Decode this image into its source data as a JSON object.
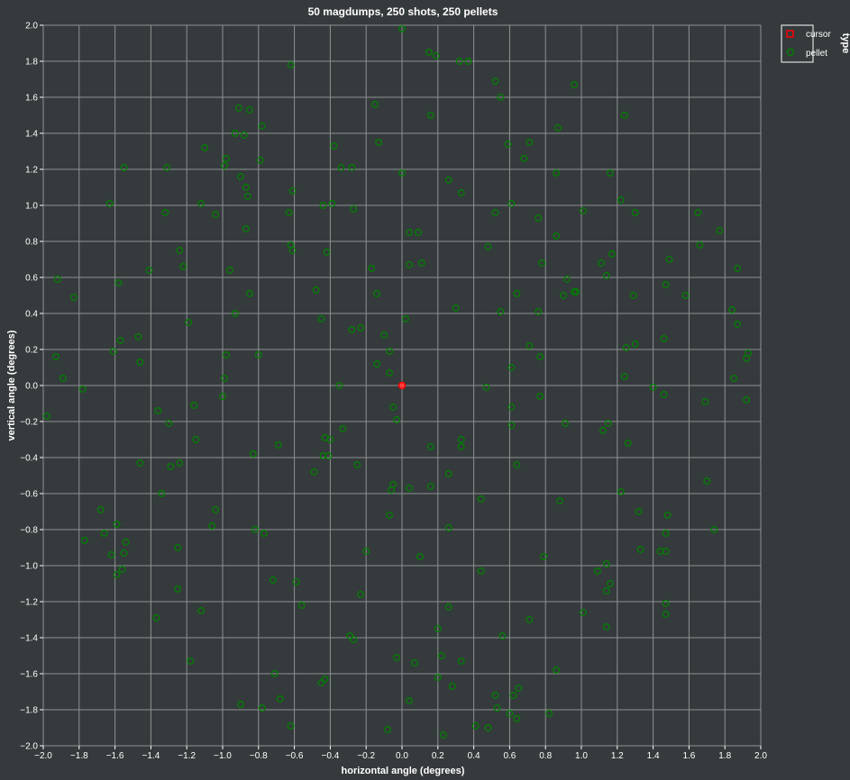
{
  "chart_data": {
    "type": "scatter",
    "title": "50 magdumps, 250 shots, 250 pellets",
    "xlabel": "horizontal angle (degrees)",
    "ylabel": "vertical angle (degrees)",
    "xlim": [
      -2.0,
      2.0
    ],
    "ylim": [
      -2.0,
      2.0
    ],
    "xticks": [
      "−2.0",
      "−1.8",
      "−1.6",
      "−1.4",
      "−1.2",
      "−1.0",
      "−0.8",
      "−0.6",
      "−0.4",
      "−0.2",
      "0.0",
      "0.2",
      "0.4",
      "0.6",
      "0.8",
      "1.0",
      "1.2",
      "1.4",
      "1.6",
      "1.8",
      "2.0"
    ],
    "yticks": [
      "−2.0",
      "−1.8",
      "−1.6",
      "−1.4",
      "−1.2",
      "−1.0",
      "−0.8",
      "−0.6",
      "−0.4",
      "−0.2",
      "0.0",
      "0.2",
      "0.4",
      "0.6",
      "0.8",
      "1.0",
      "1.2",
      "1.4",
      "1.6",
      "1.8",
      "2.0"
    ],
    "grid": true,
    "legend": {
      "title": "type",
      "placement": "top-right",
      "entries": [
        {
          "label": "cursor",
          "color": "#ff0000",
          "shape": "square"
        },
        {
          "label": "pellet",
          "color": "#008000",
          "shape": "circle"
        }
      ]
    },
    "series": [
      {
        "name": "cursor",
        "color": "#ff0000",
        "points": [
          [
            0.0,
            0.0
          ]
        ]
      },
      {
        "name": "pellet",
        "color": "#008000",
        "points": [
          [
            0.0,
            1.98
          ],
          [
            0.15,
            1.85
          ],
          [
            0.19,
            1.83
          ],
          [
            0.32,
            1.8
          ],
          [
            0.37,
            1.8
          ],
          [
            -0.62,
            1.78
          ],
          [
            0.52,
            1.69
          ],
          [
            0.96,
            1.67
          ],
          [
            0.55,
            1.6
          ],
          [
            -0.15,
            1.56
          ],
          [
            -0.91,
            1.54
          ],
          [
            -0.85,
            1.53
          ],
          [
            0.16,
            1.5
          ],
          [
            1.24,
            1.5
          ],
          [
            -0.78,
            1.44
          ],
          [
            0.87,
            1.43
          ],
          [
            -0.93,
            1.4
          ],
          [
            -0.88,
            1.39
          ],
          [
            -0.13,
            1.35
          ],
          [
            0.59,
            1.34
          ],
          [
            0.71,
            1.35
          ],
          [
            -0.38,
            1.33
          ],
          [
            -1.1,
            1.32
          ],
          [
            0.68,
            1.26
          ],
          [
            -0.98,
            1.26
          ],
          [
            -0.79,
            1.25
          ],
          [
            -0.99,
            1.22
          ],
          [
            -1.31,
            1.21
          ],
          [
            -1.55,
            1.21
          ],
          [
            -0.34,
            1.21
          ],
          [
            -0.28,
            1.21
          ],
          [
            0.86,
            1.18
          ],
          [
            1.16,
            1.18
          ],
          [
            0.0,
            1.18
          ],
          [
            -0.9,
            1.16
          ],
          [
            0.26,
            1.14
          ],
          [
            -0.87,
            1.1
          ],
          [
            0.33,
            1.07
          ],
          [
            -0.86,
            1.05
          ],
          [
            -0.61,
            1.08
          ],
          [
            1.22,
            1.03
          ],
          [
            -1.63,
            1.01
          ],
          [
            -1.12,
            1.01
          ],
          [
            0.61,
            1.01
          ],
          [
            -0.39,
            1.01
          ],
          [
            -0.44,
            1.0
          ],
          [
            -0.27,
            0.98
          ],
          [
            1.01,
            0.97
          ],
          [
            -1.32,
            0.96
          ],
          [
            1.3,
            0.96
          ],
          [
            -1.04,
            0.95
          ],
          [
            -0.63,
            0.96
          ],
          [
            0.52,
            0.96
          ],
          [
            1.65,
            0.96
          ],
          [
            0.76,
            0.93
          ],
          [
            -0.87,
            0.87
          ],
          [
            1.77,
            0.86
          ],
          [
            0.04,
            0.85
          ],
          [
            0.09,
            0.85
          ],
          [
            0.86,
            0.83
          ],
          [
            -0.62,
            0.78
          ],
          [
            0.48,
            0.77
          ],
          [
            1.66,
            0.78
          ],
          [
            -0.61,
            0.75
          ],
          [
            -1.24,
            0.75
          ],
          [
            -0.42,
            0.74
          ],
          [
            1.17,
            0.73
          ],
          [
            1.49,
            0.7
          ],
          [
            1.11,
            0.68
          ],
          [
            0.78,
            0.68
          ],
          [
            0.11,
            0.68
          ],
          [
            0.04,
            0.67
          ],
          [
            -1.22,
            0.66
          ],
          [
            -0.17,
            0.65
          ],
          [
            1.87,
            0.65
          ],
          [
            -1.41,
            0.64
          ],
          [
            -0.96,
            0.64
          ],
          [
            1.14,
            0.61
          ],
          [
            -1.92,
            0.59
          ],
          [
            0.92,
            0.59
          ],
          [
            -1.58,
            0.57
          ],
          [
            1.47,
            0.56
          ],
          [
            -0.48,
            0.53
          ],
          [
            0.96,
            0.52
          ],
          [
            0.97,
            0.52
          ],
          [
            -0.14,
            0.51
          ],
          [
            -0.85,
            0.51
          ],
          [
            0.64,
            0.51
          ],
          [
            0.9,
            0.5
          ],
          [
            1.29,
            0.5
          ],
          [
            1.58,
            0.5
          ],
          [
            -1.83,
            0.49
          ],
          [
            1.84,
            0.42
          ],
          [
            0.3,
            0.43
          ],
          [
            0.55,
            0.41
          ],
          [
            0.76,
            0.41
          ],
          [
            -0.93,
            0.4
          ],
          [
            -0.45,
            0.37
          ],
          [
            0.02,
            0.37
          ],
          [
            -1.19,
            0.35
          ],
          [
            1.87,
            0.34
          ],
          [
            -0.23,
            0.32
          ],
          [
            -0.28,
            0.31
          ],
          [
            -0.1,
            0.28
          ],
          [
            -1.47,
            0.27
          ],
          [
            1.46,
            0.26
          ],
          [
            -1.57,
            0.25
          ],
          [
            0.71,
            0.22
          ],
          [
            1.3,
            0.23
          ],
          [
            1.25,
            0.21
          ],
          [
            -1.61,
            0.19
          ],
          [
            -0.07,
            0.19
          ],
          [
            -1.93,
            0.16
          ],
          [
            -0.98,
            0.17
          ],
          [
            -0.8,
            0.17
          ],
          [
            0.77,
            0.16
          ],
          [
            1.93,
            0.18
          ],
          [
            1.92,
            0.15
          ],
          [
            -1.46,
            0.13
          ],
          [
            -0.14,
            0.12
          ],
          [
            0.61,
            0.1
          ],
          [
            -0.07,
            0.07
          ],
          [
            -1.89,
            0.04
          ],
          [
            -0.99,
            0.04
          ],
          [
            1.24,
            0.05
          ],
          [
            1.85,
            0.04
          ],
          [
            -1.78,
            -0.02
          ],
          [
            -0.35,
            0.0
          ],
          [
            0.47,
            -0.01
          ],
          [
            1.4,
            -0.01
          ],
          [
            -1.0,
            -0.06
          ],
          [
            0.77,
            -0.06
          ],
          [
            1.46,
            -0.05
          ],
          [
            1.92,
            -0.08
          ],
          [
            1.69,
            -0.09
          ],
          [
            -0.05,
            -0.12
          ],
          [
            -1.16,
            -0.11
          ],
          [
            0.61,
            -0.12
          ],
          [
            -1.36,
            -0.14
          ],
          [
            -1.98,
            -0.17
          ],
          [
            -0.03,
            -0.19
          ],
          [
            0.91,
            -0.21
          ],
          [
            0.61,
            -0.22
          ],
          [
            1.15,
            -0.21
          ],
          [
            -1.3,
            -0.21
          ],
          [
            -0.33,
            -0.24
          ],
          [
            1.12,
            -0.25
          ],
          [
            -0.43,
            -0.29
          ],
          [
            -0.4,
            -0.3
          ],
          [
            -1.15,
            -0.3
          ],
          [
            0.33,
            -0.3
          ],
          [
            -0.69,
            -0.33
          ],
          [
            0.16,
            -0.34
          ],
          [
            0.33,
            -0.34
          ],
          [
            1.26,
            -0.32
          ],
          [
            -0.83,
            -0.38
          ],
          [
            -0.44,
            -0.39
          ],
          [
            -0.41,
            -0.39
          ],
          [
            -1.46,
            -0.43
          ],
          [
            -0.25,
            -0.44
          ],
          [
            0.64,
            -0.44
          ],
          [
            -1.29,
            -0.45
          ],
          [
            -1.24,
            -0.43
          ],
          [
            -0.49,
            -0.48
          ],
          [
            0.26,
            -0.49
          ],
          [
            1.7,
            -0.53
          ],
          [
            -0.05,
            -0.55
          ],
          [
            0.04,
            -0.57
          ],
          [
            -0.06,
            -0.58
          ],
          [
            0.16,
            -0.56
          ],
          [
            1.22,
            -0.59
          ],
          [
            -1.34,
            -0.6
          ],
          [
            0.44,
            -0.63
          ],
          [
            0.88,
            -0.64
          ],
          [
            -1.68,
            -0.69
          ],
          [
            -1.04,
            -0.69
          ],
          [
            1.32,
            -0.7
          ],
          [
            1.48,
            -0.72
          ],
          [
            -0.07,
            -0.72
          ],
          [
            -1.59,
            -0.77
          ],
          [
            -1.66,
            -0.82
          ],
          [
            -1.06,
            -0.78
          ],
          [
            -0.82,
            -0.8
          ],
          [
            -0.77,
            -0.82
          ],
          [
            0.26,
            -0.79
          ],
          [
            1.47,
            -0.82
          ],
          [
            1.74,
            -0.8
          ],
          [
            -1.77,
            -0.86
          ],
          [
            -1.54,
            -0.87
          ],
          [
            -1.25,
            -0.9
          ],
          [
            -1.62,
            -0.94
          ],
          [
            -1.55,
            -0.93
          ],
          [
            -0.2,
            -0.92
          ],
          [
            1.33,
            -0.91
          ],
          [
            1.44,
            -0.92
          ],
          [
            1.47,
            -0.92
          ],
          [
            0.79,
            -0.95
          ],
          [
            0.1,
            -0.95
          ],
          [
            -1.59,
            -1.05
          ],
          [
            -1.56,
            -1.02
          ],
          [
            1.09,
            -1.03
          ],
          [
            0.44,
            -1.03
          ],
          [
            1.14,
            -0.99
          ],
          [
            1.16,
            -1.1
          ],
          [
            1.14,
            -1.14
          ],
          [
            -0.72,
            -1.08
          ],
          [
            -0.59,
            -1.09
          ],
          [
            -1.25,
            -1.13
          ],
          [
            -0.23,
            -1.16
          ],
          [
            1.47,
            -1.21
          ],
          [
            -0.56,
            -1.22
          ],
          [
            0.26,
            -1.23
          ],
          [
            -1.12,
            -1.25
          ],
          [
            1.01,
            -1.26
          ],
          [
            1.47,
            -1.27
          ],
          [
            -1.37,
            -1.29
          ],
          [
            0.71,
            -1.3
          ],
          [
            1.14,
            -1.34
          ],
          [
            0.2,
            -1.35
          ],
          [
            0.56,
            -1.39
          ],
          [
            -0.29,
            -1.39
          ],
          [
            -0.27,
            -1.41
          ],
          [
            0.22,
            -1.5
          ],
          [
            -0.03,
            -1.51
          ],
          [
            0.07,
            -1.54
          ],
          [
            0.33,
            -1.53
          ],
          [
            -1.18,
            -1.53
          ],
          [
            0.86,
            -1.58
          ],
          [
            -0.71,
            -1.6
          ],
          [
            0.2,
            -1.62
          ],
          [
            -0.43,
            -1.63
          ],
          [
            -0.45,
            -1.65
          ],
          [
            0.28,
            -1.67
          ],
          [
            0.65,
            -1.68
          ],
          [
            -0.68,
            -1.74
          ],
          [
            0.04,
            -1.75
          ],
          [
            0.52,
            -1.72
          ],
          [
            0.62,
            -1.72
          ],
          [
            -0.9,
            -1.77
          ],
          [
            -0.78,
            -1.79
          ],
          [
            0.53,
            -1.79
          ],
          [
            0.6,
            -1.82
          ],
          [
            0.82,
            -1.82
          ],
          [
            0.64,
            -1.85
          ],
          [
            -0.62,
            -1.89
          ],
          [
            0.41,
            -1.89
          ],
          [
            0.48,
            -1.9
          ],
          [
            -0.08,
            -1.91
          ],
          [
            0.23,
            -1.94
          ]
        ]
      }
    ]
  }
}
